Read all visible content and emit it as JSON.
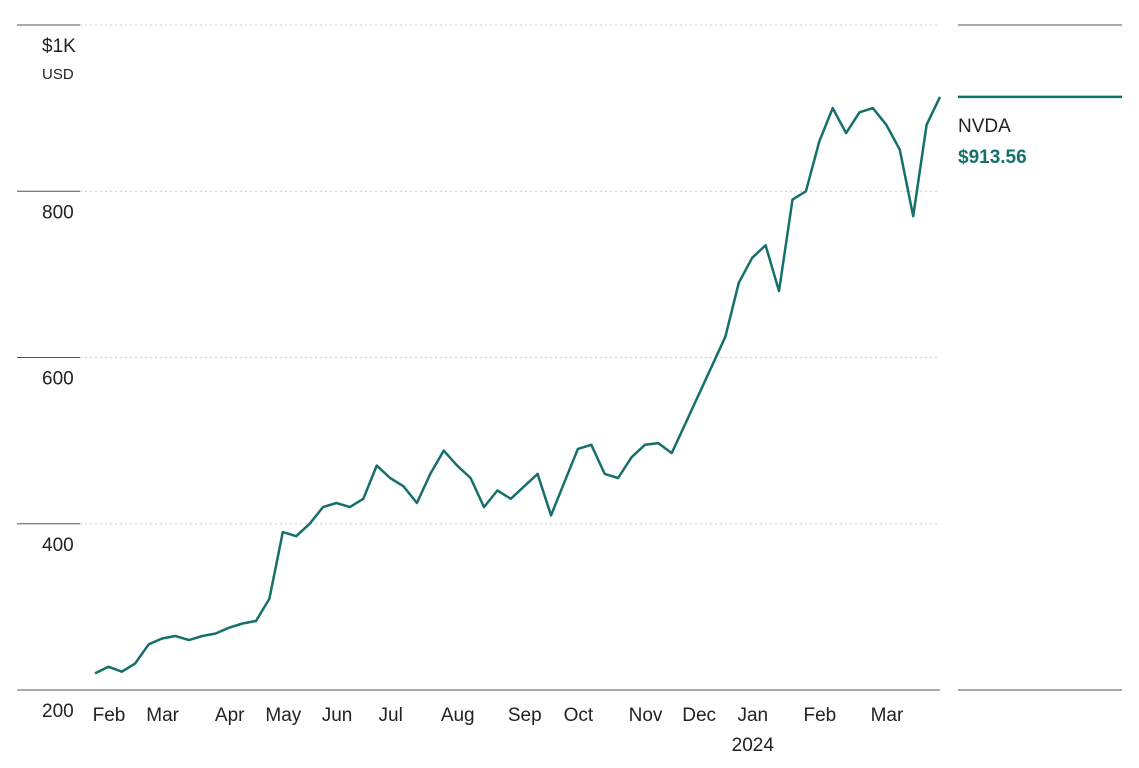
{
  "chart_data": {
    "type": "line",
    "categories": [
      "Feb",
      null,
      null,
      null,
      "Mar",
      null,
      null,
      null,
      null,
      "Apr",
      null,
      null,
      null,
      "May",
      null,
      null,
      null,
      "Jun",
      null,
      null,
      null,
      "Jul",
      null,
      null,
      null,
      null,
      "Aug",
      null,
      null,
      null,
      null,
      "Sep",
      null,
      null,
      null,
      "Oct",
      null,
      null,
      null,
      null,
      "Nov",
      null,
      null,
      null,
      "Dec",
      null,
      null,
      null,
      "Jan",
      null,
      null,
      null,
      null,
      "Feb",
      null,
      null,
      null,
      null,
      "Mar",
      null,
      null,
      null,
      null,
      null
    ],
    "x_sublabel": "2024",
    "series": [
      {
        "name": "NVDA",
        "color": "#15706b",
        "values": [
          220,
          228,
          222,
          232,
          255,
          262,
          265,
          260,
          265,
          268,
          275,
          280,
          283,
          310,
          390,
          385,
          400,
          420,
          425,
          420,
          430,
          470,
          455,
          445,
          425,
          460,
          488,
          470,
          455,
          420,
          440,
          430,
          445,
          460,
          410,
          450,
          490,
          495,
          460,
          455,
          480,
          495,
          497,
          485,
          520,
          555,
          590,
          625,
          690,
          720,
          735,
          680,
          790,
          800,
          860,
          900,
          870,
          895,
          900,
          880,
          850,
          770,
          880,
          913.56
        ],
        "value_labels": [
          null,
          null,
          null,
          null,
          null,
          null,
          null,
          null,
          null,
          null,
          null,
          null,
          null,
          null,
          null,
          null,
          null,
          null,
          null,
          null,
          null,
          null,
          null,
          null,
          null,
          null,
          null,
          null,
          null,
          null,
          null,
          null,
          null,
          null,
          null,
          null,
          null,
          null,
          null,
          null,
          null,
          null,
          null,
          null,
          null,
          null,
          null,
          null,
          null,
          null,
          null,
          null,
          null,
          null,
          null,
          null,
          null,
          null,
          null,
          null,
          null,
          null,
          null,
          "$913.56"
        ]
      }
    ],
    "ylim": [
      200,
      1000
    ],
    "yticks": [
      200,
      400,
      600,
      800,
      {
        "value": 1000,
        "label": "$1K"
      }
    ],
    "y_unit": "USD",
    "grid": true
  }
}
